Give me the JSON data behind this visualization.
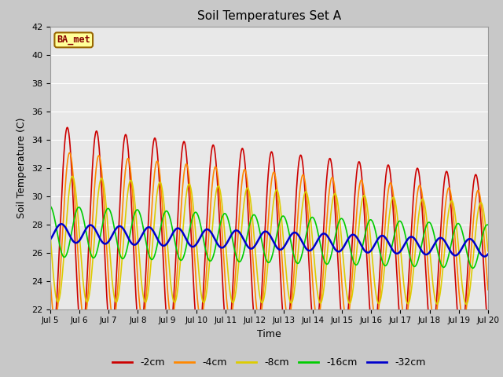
{
  "title": "Soil Temperatures Set A",
  "xlabel": "Time",
  "ylabel": "Soil Temperature (C)",
  "ylim": [
    22,
    42
  ],
  "xlim": [
    0,
    360
  ],
  "fig_bg_color": "#c8c8c8",
  "plot_bg_color": "#e8e8e8",
  "grid_color": "#ffffff",
  "label_text": "BA_met",
  "label_bg": "#ffff99",
  "label_border": "#996600",
  "label_text_color": "#880000",
  "series": [
    {
      "name": "-2cm",
      "color": "#cc0000",
      "amplitude": 7.5,
      "mean": 27.5,
      "phase_shift": 0.0,
      "amp_decay": 0.018,
      "mean_drift": -0.005,
      "linewidth": 1.2
    },
    {
      "name": "-4cm",
      "color": "#ff8800",
      "amplitude": 6.0,
      "mean": 27.2,
      "phase_shift": 0.5,
      "amp_decay": 0.018,
      "mean_drift": -0.004,
      "linewidth": 1.2
    },
    {
      "name": "-8cm",
      "color": "#ddcc00",
      "amplitude": 4.5,
      "mean": 27.0,
      "phase_shift": 1.1,
      "amp_decay": 0.015,
      "mean_drift": -0.003,
      "linewidth": 1.2
    },
    {
      "name": "-16cm",
      "color": "#00cc00",
      "amplitude": 1.8,
      "mean": 27.5,
      "phase_shift": 2.5,
      "amp_decay": 0.01,
      "mean_drift": -0.003,
      "linewidth": 1.2
    },
    {
      "name": "-32cm",
      "color": "#0000cc",
      "amplitude": 0.65,
      "mean": 27.4,
      "phase_shift": 5.0,
      "amp_decay": 0.005,
      "mean_drift": -0.003,
      "linewidth": 1.8
    }
  ],
  "xtick_positions": [
    0,
    24,
    48,
    72,
    96,
    120,
    144,
    168,
    192,
    216,
    240,
    264,
    288,
    312,
    336,
    360
  ],
  "xtick_labels": [
    "Jul 5",
    "Jul 6",
    "Jul 7",
    "Jul 8",
    "Jul 9",
    "Jul 10",
    "Jul 11",
    "Jul 12",
    "Jul 13",
    "Jul 14",
    "Jul 15",
    "Jul 16",
    "Jul 17",
    "Jul 18",
    "Jul 19",
    "Jul 20"
  ],
  "ytick_positions": [
    22,
    24,
    26,
    28,
    30,
    32,
    34,
    36,
    38,
    40,
    42
  ],
  "ytick_labels": [
    "22",
    "24",
    "26",
    "28",
    "30",
    "32",
    "34",
    "36",
    "38",
    "40",
    "42"
  ]
}
